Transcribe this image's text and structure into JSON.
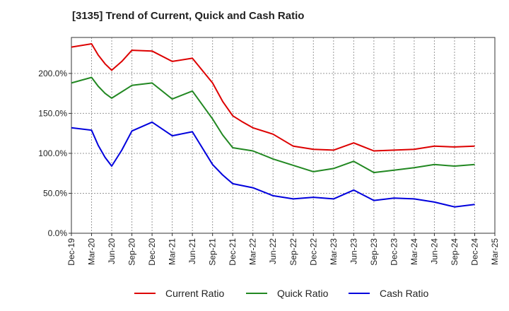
{
  "chart_data": {
    "type": "line",
    "title": "[3135]  Trend of Current, Quick and Cash Ratio",
    "xlabel": "",
    "ylabel": "",
    "ylim": [
      0,
      245
    ],
    "yticks": [
      0,
      50,
      100,
      150,
      200
    ],
    "ytick_labels": [
      "0.0%",
      "50.0%",
      "100.0%",
      "150.0%",
      "200.0%"
    ],
    "x": [
      "Dec-19",
      "Mar-20",
      "Jun-20",
      "Sep-20",
      "Dec-20",
      "Mar-21",
      "Jun-21",
      "Sep-21",
      "Dec-21",
      "Mar-22",
      "Jun-22",
      "Sep-22",
      "Dec-22",
      "Mar-23",
      "Jun-23",
      "Sep-23",
      "Dec-23",
      "Mar-24",
      "Jun-24",
      "Sep-24",
      "Dec-24",
      "Mar-25"
    ],
    "x_tick_labels": [
      "Dec-19",
      "Mar-20",
      "Jun-20",
      "Sep-20",
      "Dec-20",
      "Mar-21",
      "Jun-21",
      "Sep-21",
      "Dec-21",
      "Mar-22",
      "Jun-22",
      "Sep-22",
      "Dec-22",
      "Mar-23",
      "Jun-23",
      "Sep-23",
      "Dec-23",
      "Mar-24",
      "Jun-24",
      "Sep-24",
      "Dec-24",
      "Mar-25"
    ],
    "grid": true,
    "legend_position": "bottom",
    "series": [
      {
        "name": "Current Ratio",
        "color": "#dd0000",
        "points": [
          [
            0,
            233
          ],
          [
            1,
            237
          ],
          [
            1.33,
            223
          ],
          [
            1.67,
            212
          ],
          [
            2,
            204
          ],
          [
            2.5,
            215
          ],
          [
            3,
            229
          ],
          [
            4,
            228
          ],
          [
            5,
            215
          ],
          [
            6,
            219
          ],
          [
            7,
            188
          ],
          [
            7.5,
            165
          ],
          [
            8,
            147
          ],
          [
            8.5,
            139
          ],
          [
            9,
            132
          ],
          [
            10,
            124
          ],
          [
            11,
            109
          ],
          [
            12,
            105
          ],
          [
            13,
            104
          ],
          [
            14,
            113
          ],
          [
            15,
            103
          ],
          [
            16,
            104
          ],
          [
            17,
            105
          ],
          [
            18,
            109
          ],
          [
            19,
            108
          ],
          [
            20,
            109
          ]
        ]
      },
      {
        "name": "Quick Ratio",
        "color": "#228822",
        "points": [
          [
            0,
            188
          ],
          [
            1,
            195
          ],
          [
            1.33,
            184
          ],
          [
            1.67,
            175
          ],
          [
            2,
            169
          ],
          [
            2.5,
            177
          ],
          [
            3,
            185
          ],
          [
            4,
            188
          ],
          [
            5,
            168
          ],
          [
            6,
            178
          ],
          [
            7,
            143
          ],
          [
            7.5,
            123
          ],
          [
            8,
            107
          ],
          [
            9,
            103
          ],
          [
            10,
            93
          ],
          [
            11,
            85
          ],
          [
            12,
            77
          ],
          [
            13,
            81
          ],
          [
            14,
            90
          ],
          [
            15,
            76
          ],
          [
            16,
            79
          ],
          [
            17,
            82
          ],
          [
            18,
            86
          ],
          [
            19,
            84
          ],
          [
            20,
            86
          ]
        ]
      },
      {
        "name": "Cash Ratio",
        "color": "#0000dd",
        "points": [
          [
            0,
            132
          ],
          [
            1,
            129
          ],
          [
            1.33,
            110
          ],
          [
            1.67,
            95
          ],
          [
            2,
            84
          ],
          [
            2.5,
            104
          ],
          [
            3,
            128
          ],
          [
            4,
            139
          ],
          [
            5,
            122
          ],
          [
            6,
            127
          ],
          [
            7,
            86
          ],
          [
            7.5,
            73
          ],
          [
            8,
            62
          ],
          [
            9,
            57
          ],
          [
            10,
            47
          ],
          [
            11,
            43
          ],
          [
            12,
            45
          ],
          [
            13,
            43
          ],
          [
            14,
            54
          ],
          [
            15,
            41
          ],
          [
            16,
            44
          ],
          [
            17,
            43
          ],
          [
            18,
            39
          ],
          [
            19,
            33
          ],
          [
            20,
            36
          ]
        ]
      }
    ]
  }
}
